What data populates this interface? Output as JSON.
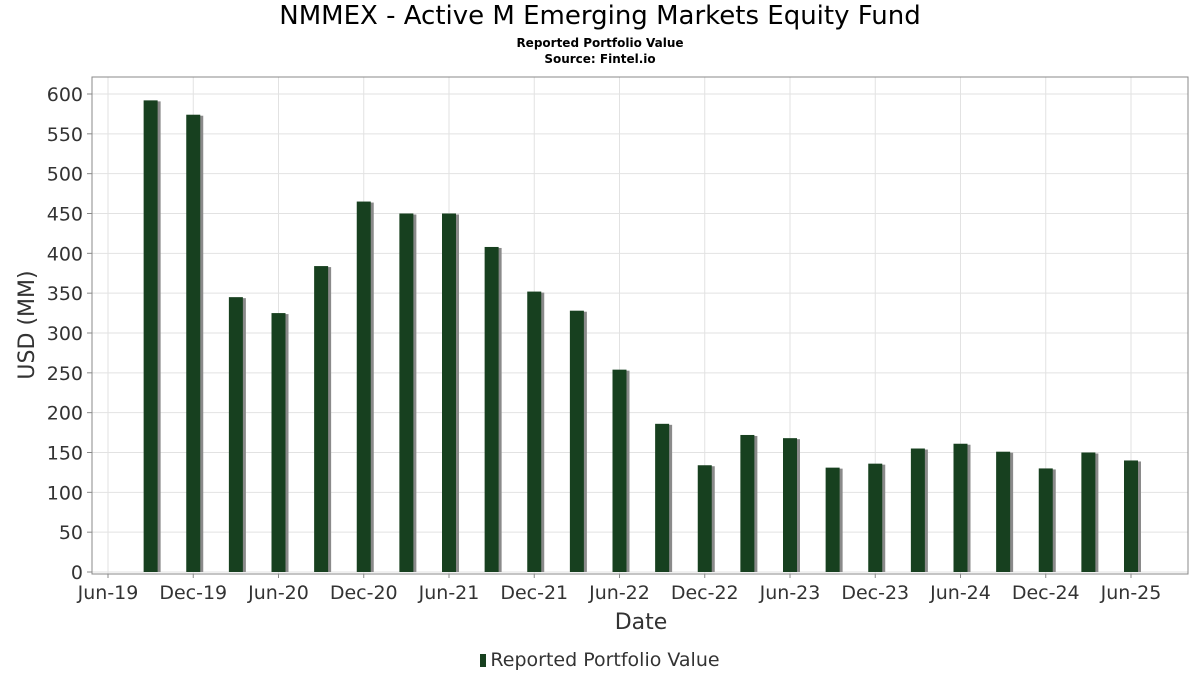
{
  "chart_data": {
    "type": "bar",
    "title": "NMMEX - Active M Emerging Markets Equity Fund",
    "subtitle": "Reported Portfolio Value",
    "source": "Source: Fintel.io",
    "xlabel": "Date",
    "ylabel": "USD (MM)",
    "ylim": [
      0,
      620
    ],
    "yticks": [
      0,
      50,
      100,
      150,
      200,
      250,
      300,
      350,
      400,
      450,
      500,
      550,
      600
    ],
    "xticks": [
      "Jun-19",
      "Dec-19",
      "Jun-20",
      "Dec-20",
      "Jun-21",
      "Dec-21",
      "Jun-22",
      "Dec-22",
      "Jun-23",
      "Dec-23",
      "Jun-24",
      "Dec-24",
      "Jun-25"
    ],
    "grid": true,
    "legend_position": "bottom",
    "series": [
      {
        "name": "Reported Portfolio Value",
        "color": "#17401f",
        "points": [
          {
            "x": "Sep-19",
            "y": 592
          },
          {
            "x": "Dec-19",
            "y": 574
          },
          {
            "x": "Mar-20",
            "y": 345
          },
          {
            "x": "Jun-20",
            "y": 325
          },
          {
            "x": "Sep-20",
            "y": 384
          },
          {
            "x": "Dec-20",
            "y": 465
          },
          {
            "x": "Mar-21",
            "y": 450
          },
          {
            "x": "Jun-21",
            "y": 450
          },
          {
            "x": "Sep-21",
            "y": 408
          },
          {
            "x": "Dec-21",
            "y": 352
          },
          {
            "x": "Mar-22",
            "y": 328
          },
          {
            "x": "Jun-22",
            "y": 254
          },
          {
            "x": "Sep-22",
            "y": 186
          },
          {
            "x": "Dec-22",
            "y": 134
          },
          {
            "x": "Mar-23",
            "y": 172
          },
          {
            "x": "Jun-23",
            "y": 168
          },
          {
            "x": "Sep-23",
            "y": 131
          },
          {
            "x": "Dec-23",
            "y": 136
          },
          {
            "x": "Mar-24",
            "y": 155
          },
          {
            "x": "Jun-24",
            "y": 161
          },
          {
            "x": "Sep-24",
            "y": 151
          },
          {
            "x": "Dec-24",
            "y": 130
          },
          {
            "x": "Mar-25",
            "y": 150
          },
          {
            "x": "Jun-25",
            "y": 140
          }
        ]
      }
    ]
  }
}
